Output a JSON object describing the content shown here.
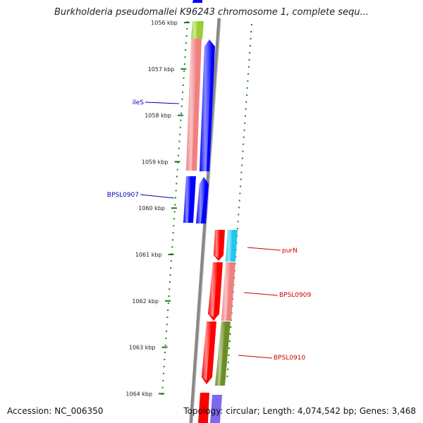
{
  "title": "Burkholderia pseudomallei K96243 chromosome 1, complete sequ...",
  "footer": {
    "accession": "Accession: NC_006350",
    "summary": "Topology: circular; Length: 4,074,542 bp; Genes: 3,468"
  },
  "ticks": [
    {
      "label": "1056 kbp",
      "kbp": 1056
    },
    {
      "label": "1057 kbp",
      "kbp": 1057
    },
    {
      "label": "1058 kbp",
      "kbp": 1058
    },
    {
      "label": "1059 kbp",
      "kbp": 1059
    },
    {
      "label": "1060 kbp",
      "kbp": 1060
    },
    {
      "label": "1061 kbp",
      "kbp": 1061
    },
    {
      "label": "1062 kbp",
      "kbp": 1062
    },
    {
      "label": "1063 kbp",
      "kbp": 1063
    },
    {
      "label": "1064 kbp",
      "kbp": 1064
    }
  ],
  "gene_labels": [
    {
      "name": "ileS",
      "strand": "reverse",
      "color": "#0000aa"
    },
    {
      "name": "BPSL0907",
      "strand": "reverse",
      "color": "#0000aa"
    },
    {
      "name": "purN",
      "strand": "forward",
      "color": "#cc0000"
    },
    {
      "name": "BPSL0909",
      "strand": "forward",
      "color": "#cc0000"
    },
    {
      "name": "BPSL0910",
      "strand": "forward",
      "color": "#cc0000"
    }
  ],
  "colors": {
    "backbone": "#888888",
    "tick": "#1a7a1a",
    "gene_blue": "#0000ff",
    "gene_red": "#ff0000",
    "salmon": "#f08080",
    "olive": "#6b8e23",
    "lime": "#9acd32",
    "sky": "#1ec8f0",
    "slate": "#7b68ee"
  }
}
